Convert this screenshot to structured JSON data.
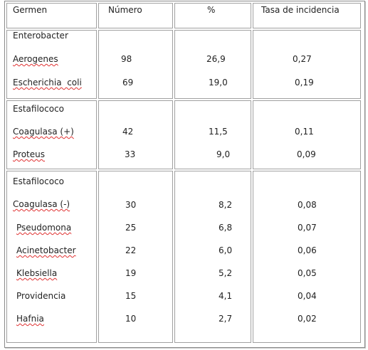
{
  "headers": [
    "Germen",
    "Número",
    "%",
    "Tasa de incidencia"
  ],
  "groups": [
    {
      "title": "Enterobacter",
      "rows": [
        {
          "germen": "Aerogenes",
          "numero": "98",
          "pct": "26,9",
          "tasa": "0,27"
        },
        {
          "germen": "Escherichia  coli",
          "numero": "69",
          "pct": "19,0",
          "tasa": "0,19"
        }
      ]
    },
    {
      "title": "Estafilococo",
      "rows": [
        {
          "germen": "Coagulasa (+)",
          "numero": "42",
          "pct": "11,5",
          "tasa": "0,11"
        },
        {
          "germen": "Proteus",
          "numero": "33",
          "pct": "9,0",
          "tasa": "0,09"
        }
      ]
    },
    {
      "title": "Estafilococo",
      "rows": [
        {
          "germen": "Coagulasa (-)",
          "numero": "30",
          "pct": "8,2",
          "tasa": "0,08"
        },
        {
          "germen": "Pseudomona",
          "numero": "25",
          "pct": "6,8",
          "tasa": "0,07"
        },
        {
          "germen": "Acinetobacter",
          "numero": "22",
          "pct": "6,0",
          "tasa": "0,06"
        },
        {
          "germen": "Klebsiella",
          "numero": "19",
          "pct": "5,2",
          "tasa": "0,05"
        },
        {
          "germen": "Providencia",
          "numero": "15",
          "pct": "4,1",
          "tasa": "0,04"
        },
        {
          "germen": "Hafnia",
          "numero": "10",
          "pct": "2,7",
          "tasa": "0,02"
        }
      ]
    }
  ]
}
